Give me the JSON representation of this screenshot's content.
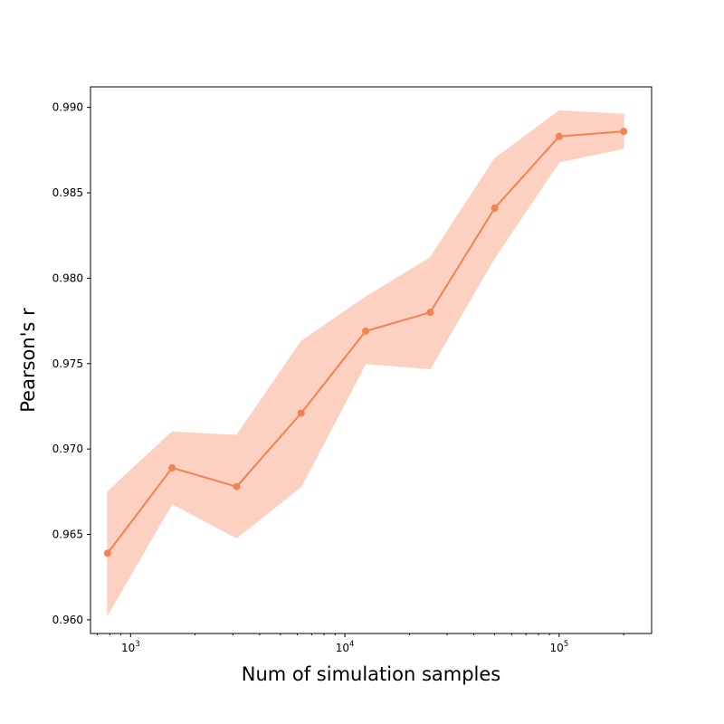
{
  "chart_data": {
    "type": "line",
    "xlabel": "Num of simulation samples",
    "ylabel": "Pearson's r",
    "xscale": "log",
    "xlim": [
      650,
      270000
    ],
    "ylim": [
      0.9592,
      0.9912
    ],
    "x_ticks": [
      {
        "value": 1000,
        "base": "10",
        "exp": "3"
      },
      {
        "value": 10000,
        "base": "10",
        "exp": "4"
      },
      {
        "value": 100000,
        "base": "10",
        "exp": "5"
      }
    ],
    "y_ticks": [
      {
        "value": 0.96,
        "label": "0.960"
      },
      {
        "value": 0.965,
        "label": "0.965"
      },
      {
        "value": 0.97,
        "label": "0.970"
      },
      {
        "value": 0.975,
        "label": "0.975"
      },
      {
        "value": 0.98,
        "label": "0.980"
      },
      {
        "value": 0.985,
        "label": "0.985"
      },
      {
        "value": 0.99,
        "label": "0.990"
      }
    ],
    "series": [
      {
        "x": [
          781,
          1562,
          3125,
          6250,
          12500,
          25000,
          50000,
          100000,
          200000
        ],
        "y": [
          0.9639,
          0.9689,
          0.9678,
          0.9721,
          0.9769,
          0.978,
          0.9841,
          0.9883,
          0.9886
        ],
        "lower": [
          0.9603,
          0.9668,
          0.9648,
          0.9678,
          0.975,
          0.9747,
          0.9812,
          0.9868,
          0.9876
        ],
        "upper": [
          0.9675,
          0.971,
          0.9708,
          0.9763,
          0.9789,
          0.9812,
          0.987,
          0.9898,
          0.9896
        ],
        "color": "#f4824f",
        "band_color": "#fdd1c2"
      }
    ],
    "grid": false,
    "legend": "none"
  }
}
